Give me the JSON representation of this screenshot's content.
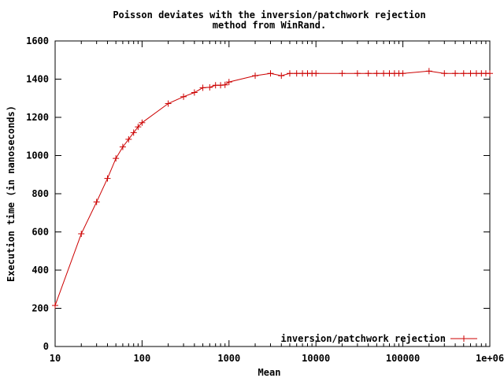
{
  "chart_data": {
    "type": "line",
    "title_lines": [
      "Poisson deviates with the inversion/patchwork rejection",
      "method from WinRand."
    ],
    "xlabel": "Mean",
    "ylabel": "Execution time (in nanoseconds)",
    "xscale": "log",
    "xlim": [
      10,
      1000000
    ],
    "ylim": [
      0,
      1600
    ],
    "xticks": [
      {
        "value": 10,
        "label": "10"
      },
      {
        "value": 100,
        "label": "100"
      },
      {
        "value": 1000,
        "label": "1000"
      },
      {
        "value": 10000,
        "label": "10000"
      },
      {
        "value": 100000,
        "label": "100000"
      },
      {
        "value": 1000000,
        "label": "1e+06"
      }
    ],
    "yticks": [
      {
        "value": 0,
        "label": "0"
      },
      {
        "value": 200,
        "label": "200"
      },
      {
        "value": 400,
        "label": "400"
      },
      {
        "value": 600,
        "label": "600"
      },
      {
        "value": 800,
        "label": "800"
      },
      {
        "value": 1000,
        "label": "1000"
      },
      {
        "value": 1200,
        "label": "1200"
      },
      {
        "value": 1400,
        "label": "1400"
      },
      {
        "value": 1600,
        "label": "1600"
      }
    ],
    "grid": false,
    "legend_position": "bottom-right",
    "series": [
      {
        "name": "inversion/patchwork rejection",
        "color": "#cc0000",
        "marker": "plus",
        "x": [
          10,
          20,
          30,
          40,
          50,
          60,
          70,
          80,
          90,
          100,
          200,
          300,
          400,
          500,
          600,
          700,
          800,
          900,
          1000,
          2000,
          3000,
          4000,
          5000,
          6000,
          7000,
          8000,
          9000,
          10000,
          20000,
          30000,
          40000,
          50000,
          60000,
          70000,
          80000,
          90000,
          100000,
          200000,
          300000,
          400000,
          500000,
          600000,
          700000,
          800000,
          900000,
          1000000
        ],
        "y": [
          215,
          590,
          757,
          880,
          985,
          1045,
          1085,
          1120,
          1150,
          1172,
          1272,
          1308,
          1330,
          1355,
          1357,
          1368,
          1368,
          1370,
          1385,
          1418,
          1430,
          1418,
          1430,
          1430,
          1430,
          1430,
          1430,
          1430,
          1430,
          1430,
          1430,
          1430,
          1430,
          1430,
          1430,
          1430,
          1430,
          1442,
          1430,
          1430,
          1430,
          1430,
          1430,
          1430,
          1430,
          1430
        ]
      }
    ]
  }
}
